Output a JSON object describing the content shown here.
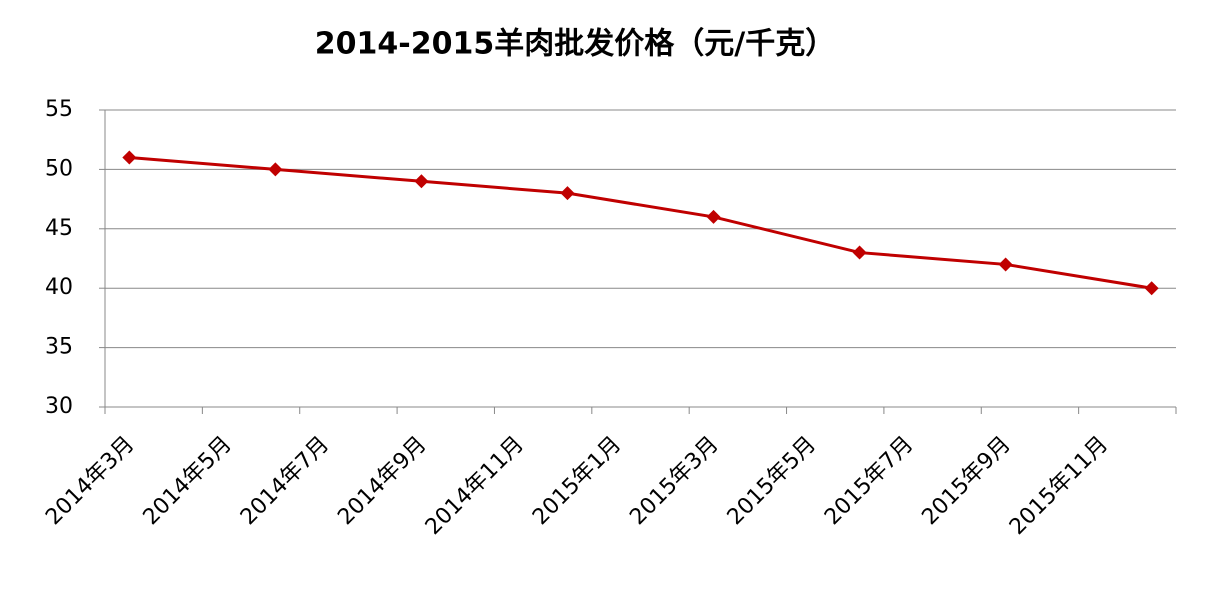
{
  "chart_data": {
    "type": "line",
    "title": "2014-2015羊肉批发价格（元/千克）",
    "x": [
      "2014-03",
      "2014-06",
      "2014-09",
      "2014-12",
      "2015-03",
      "2015-06",
      "2015-09",
      "2015-12"
    ],
    "series": [
      {
        "color": "#c00000",
        "values": [
          51,
          50,
          49,
          48,
          46,
          43,
          42,
          40
        ]
      }
    ],
    "xlim": [
      "2014-03",
      "2016-01"
    ],
    "xticks": [
      {
        "value": "2014-03",
        "label": "2014年3月"
      },
      {
        "value": "2014-05",
        "label": "2014年5月"
      },
      {
        "value": "2014-07",
        "label": "2014年7月"
      },
      {
        "value": "2014-09",
        "label": "2014年9月"
      },
      {
        "value": "2014-11",
        "label": "2014年11月"
      },
      {
        "value": "2015-01",
        "label": "2015年1月"
      },
      {
        "value": "2015-03",
        "label": "2015年3月"
      },
      {
        "value": "2015-05",
        "label": "2015年5月"
      },
      {
        "value": "2015-07",
        "label": "2015年7月"
      },
      {
        "value": "2015-09",
        "label": "2015年9月"
      },
      {
        "value": "2015-11",
        "label": "2015年11月"
      }
    ],
    "ylim": [
      30,
      55
    ],
    "yticks": [
      30,
      35,
      40,
      45,
      50,
      55
    ],
    "grid": true
  }
}
